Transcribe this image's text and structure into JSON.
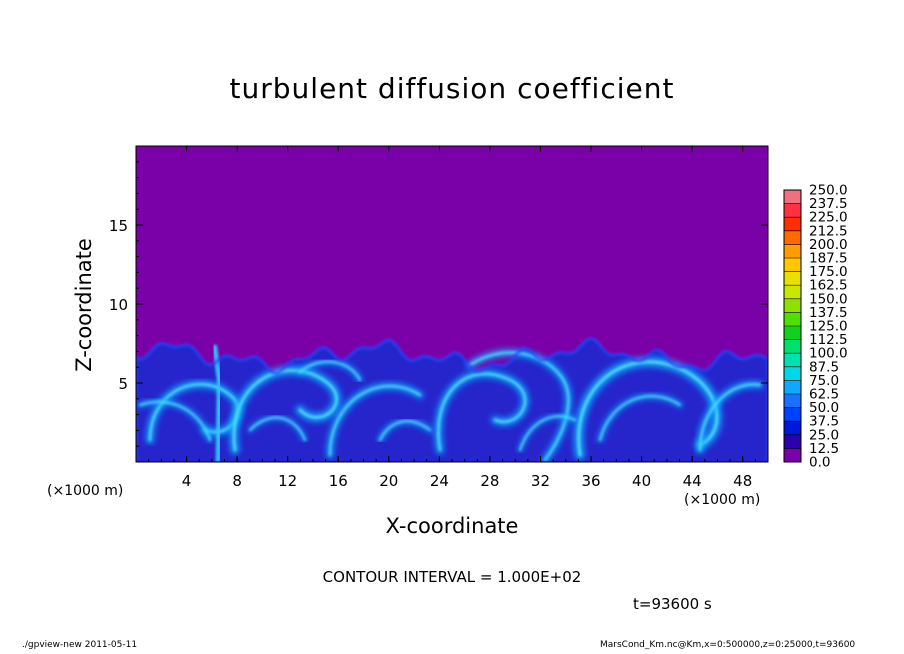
{
  "title": "turbulent diffusion coefficient",
  "colors": {
    "background_field": "#7a00a8",
    "frame": "#000000"
  },
  "chart_data": {
    "type": "heatmap",
    "title": "turbulent diffusion coefficient",
    "xlabel": "X-coordinate",
    "ylabel": "Z-coordinate",
    "xunit": "(×1000 m)",
    "xlim": [
      0,
      50
    ],
    "ylim": [
      0,
      20
    ],
    "xticks": [
      4,
      8,
      12,
      16,
      20,
      24,
      28,
      32,
      36,
      40,
      44,
      48
    ],
    "yticks": [
      5,
      10,
      15
    ],
    "colorbar": {
      "levels": [
        "0.0",
        "12.5",
        "25.0",
        "37.5",
        "50.0",
        "62.5",
        "75.0",
        "87.5",
        "100.0",
        "112.5",
        "125.0",
        "137.5",
        "150.0",
        "162.5",
        "175.0",
        "187.5",
        "200.0",
        "212.5",
        "225.0",
        "237.5",
        "250.0"
      ],
      "colors": [
        "#7a00a8",
        "#2a00b0",
        "#0018d8",
        "#0040ff",
        "#1a70ff",
        "#10a8ff",
        "#00d8e8",
        "#00e0b0",
        "#00e070",
        "#10d020",
        "#50e000",
        "#90e000",
        "#c8e800",
        "#e8e000",
        "#ffc800",
        "#ff9c00",
        "#ff6a00",
        "#ff3000",
        "#ff3040",
        "#f07080"
      ]
    },
    "field_description": "Turbulent layer of eddies below z≈6–7 (×1000 m), values mostly 12.5–75; above the layer the value is 0.0",
    "contour_interval": "CONTOUR INTERVAL = 1.000E+02",
    "time": "t=93600 s"
  },
  "footer": {
    "left": "./gpview-new  2011-05-11",
    "right": "MarsCond_Km.nc@Km,x=0:500000,z=0:25000,t=93600"
  }
}
